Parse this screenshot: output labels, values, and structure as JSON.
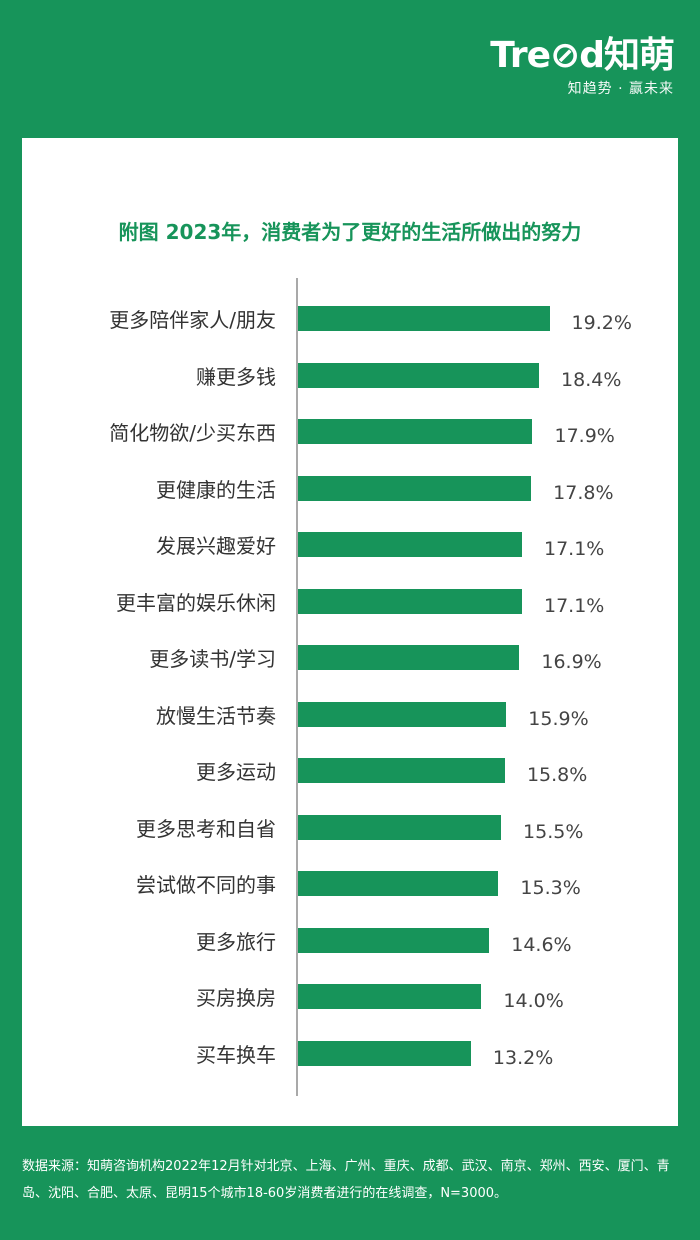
{
  "brand": {
    "name": "Tre⊘d知萌",
    "tagline": "知趋势 · 赢未来"
  },
  "chart_data": {
    "type": "bar",
    "orientation": "horizontal",
    "title": "附图 2023年，消费者为了更好的生活所做出的努力",
    "categories": [
      "更多陪伴家人/朋友",
      "赚更多钱",
      "简化物欲/少买东西",
      "更健康的生活",
      "发展兴趣爱好",
      "更丰富的娱乐休闲",
      "更多读书/学习",
      "放慢生活节奏",
      "更多运动",
      "更多思考和自省",
      "尝试做不同的事",
      "更多旅行",
      "买房换房",
      "买车换车"
    ],
    "values": [
      19.2,
      18.4,
      17.9,
      17.8,
      17.1,
      17.1,
      16.9,
      15.9,
      15.8,
      15.5,
      15.3,
      14.6,
      14.0,
      13.2
    ],
    "value_labels": [
      "19.2%",
      "18.4%",
      "17.9%",
      "17.8%",
      "17.1%",
      "17.1%",
      "16.9%",
      "15.9%",
      "15.8%",
      "15.5%",
      "15.3%",
      "14.6%",
      "14.0%",
      "13.2%"
    ],
    "unit": "%",
    "bar_color": "#17945a",
    "grid": false
  },
  "footer": {
    "source": "数据来源：知萌咨询机构2022年12月针对北京、上海、广州、重庆、成都、武汉、南京、郑州、西安、厦门、青岛、沈阳、合肥、太原、昆明15个城市18-60岁消费者进行的在线调查，N=3000。"
  }
}
